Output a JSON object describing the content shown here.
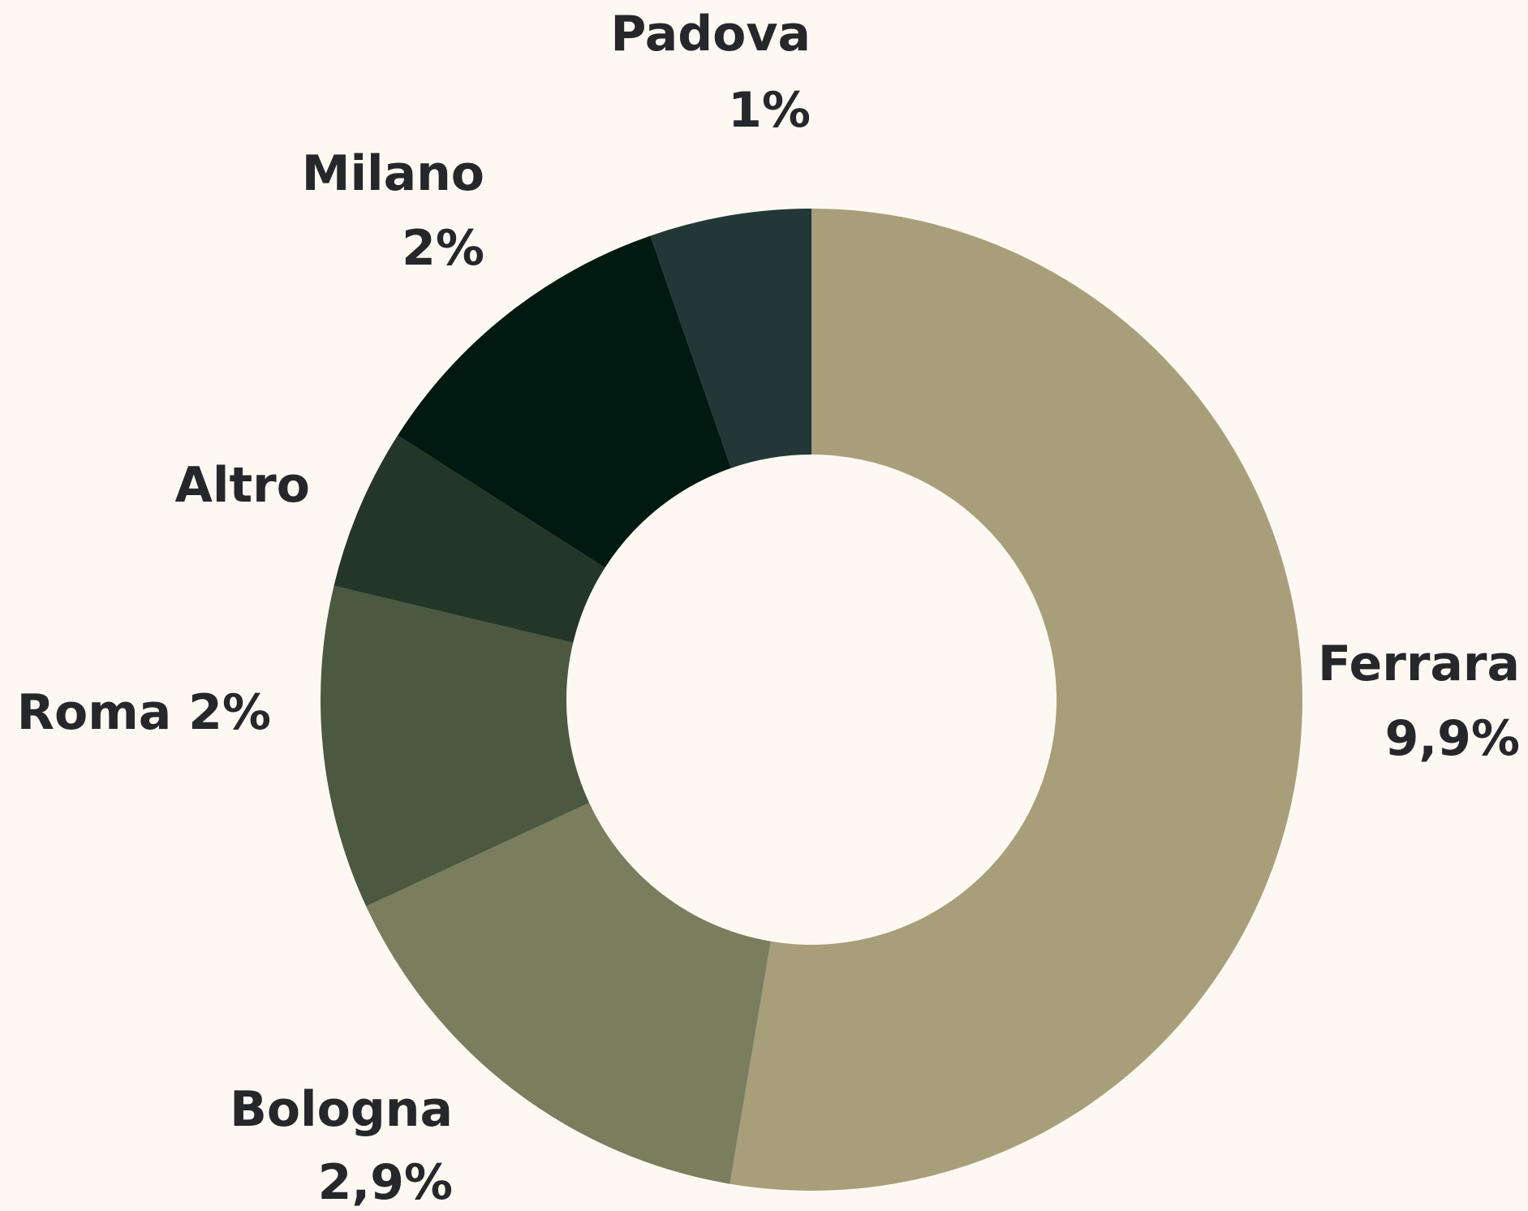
{
  "chart_data": {
    "type": "donut",
    "categories": [
      "Ferrara",
      "Bologna",
      "Roma",
      "Altro",
      "Milano",
      "Padova"
    ],
    "values": [
      9.9,
      2.9,
      2,
      1,
      2,
      1
    ],
    "value_labels": [
      "9,9%",
      "2,9%",
      "2%",
      null,
      "2%",
      "1%"
    ],
    "colors": [
      "#a89f7a",
      "#7a7d5e",
      "#4a5940",
      "#243628",
      "#011a11",
      "#213837"
    ]
  }
}
